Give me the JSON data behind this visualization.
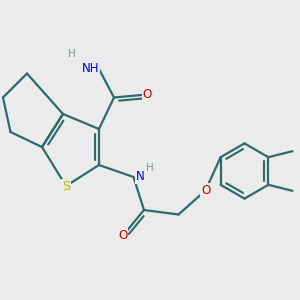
{
  "bg_color": "#ebebeb",
  "bond_color": "#2d6b6b",
  "bond_width": 1.6,
  "atom_colors": {
    "S": "#bbbb00",
    "O": "#cc0000",
    "N": "#0000cc",
    "H": "#7a9a9a",
    "C": "#2d6b6b"
  },
  "font_size": 8.5,
  "fig_size": [
    3.0,
    3.0
  ],
  "dpi": 100,
  "xlim": [
    0,
    10
  ],
  "ylim": [
    0,
    10
  ]
}
